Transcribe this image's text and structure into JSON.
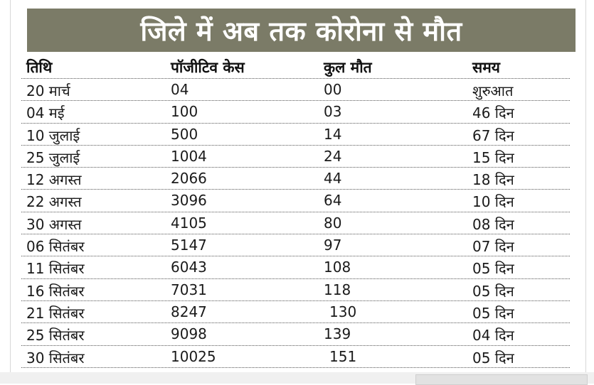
{
  "title": "जिले में अब तक कोरोना से मौत",
  "chart_data": {
    "type": "table",
    "title": "जिले में अब तक कोरोना से मौत",
    "columns": [
      "तिथि",
      "पॉजीटिव केस",
      "कुल मौत",
      "समय"
    ],
    "rows": [
      [
        "20 मार्च",
        "04",
        "00",
        "शुरुआत"
      ],
      [
        "04 मई",
        "100",
        "03",
        "46 दिन"
      ],
      [
        "10 जुलाई",
        "500",
        "14",
        "67 दिन"
      ],
      [
        "25 जुलाई",
        "1004",
        "24",
        "15 दिन"
      ],
      [
        "12 अगस्त",
        "2066",
        "44",
        "18 दिन"
      ],
      [
        "22 अगस्त",
        "3096",
        "64",
        "10 दिन"
      ],
      [
        "30 अगस्त",
        "4105",
        "80",
        "08 दिन"
      ],
      [
        "06 सितंबर",
        "5147",
        "97",
        "07 दिन"
      ],
      [
        "11 सितंबर",
        "6043",
        "108",
        "05 दिन"
      ],
      [
        "16 सितंबर",
        "7031",
        "118",
        "05 दिन"
      ],
      [
        "21 सितंबर",
        "8247",
        "130",
        "05 दिन"
      ],
      [
        "25 सितंबर",
        "9098",
        "139",
        "04 दिन"
      ],
      [
        "30 सितंबर",
        "10025",
        "151",
        "05 दिन"
      ]
    ]
  },
  "colors": {
    "title_background": "#7b7b67",
    "title_text": "#ffffff",
    "body_text": "#1a1a1a",
    "row_separator": "#555555"
  }
}
